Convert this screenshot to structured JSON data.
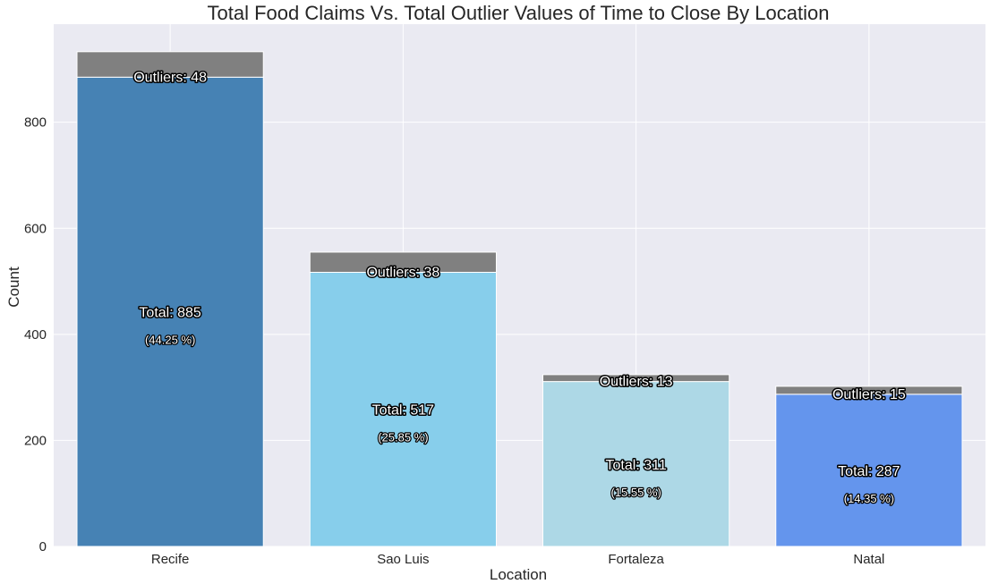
{
  "chart_data": {
    "type": "bar",
    "stacked": true,
    "title": "Total Food Claims  Vs. Total Outlier Values of Time to Close By Location",
    "xlabel": "Location",
    "ylabel": "Count",
    "ylim": [
      0,
      985
    ],
    "yticks": [
      "0",
      "200",
      "400",
      "600",
      "800"
    ],
    "categories": [
      "Recife",
      "Sao Luis",
      "Fortaleza",
      "Natal"
    ],
    "series": [
      {
        "values": [
          885,
          517,
          311,
          287
        ]
      },
      {
        "values": [
          48,
          38,
          13,
          15
        ]
      }
    ],
    "total_labels": [
      "Total: 885",
      "Total: 517",
      "Total: 311",
      "Total: 287"
    ],
    "percent_labels": [
      "(44.25 %)",
      "(25.85 %)",
      "(15.55 %)",
      "(14.35 %)"
    ],
    "outlier_labels": [
      "Outliers: 48",
      "Outliers: 38",
      "Outliers: 13",
      "Outliers: 15"
    ],
    "bar_colors": [
      "#4682b4",
      "#87ceeb",
      "#add8e6",
      "#6495ed"
    ],
    "outlier_color": "#808080",
    "background_color": "#eaeaf2",
    "grid": true
  }
}
